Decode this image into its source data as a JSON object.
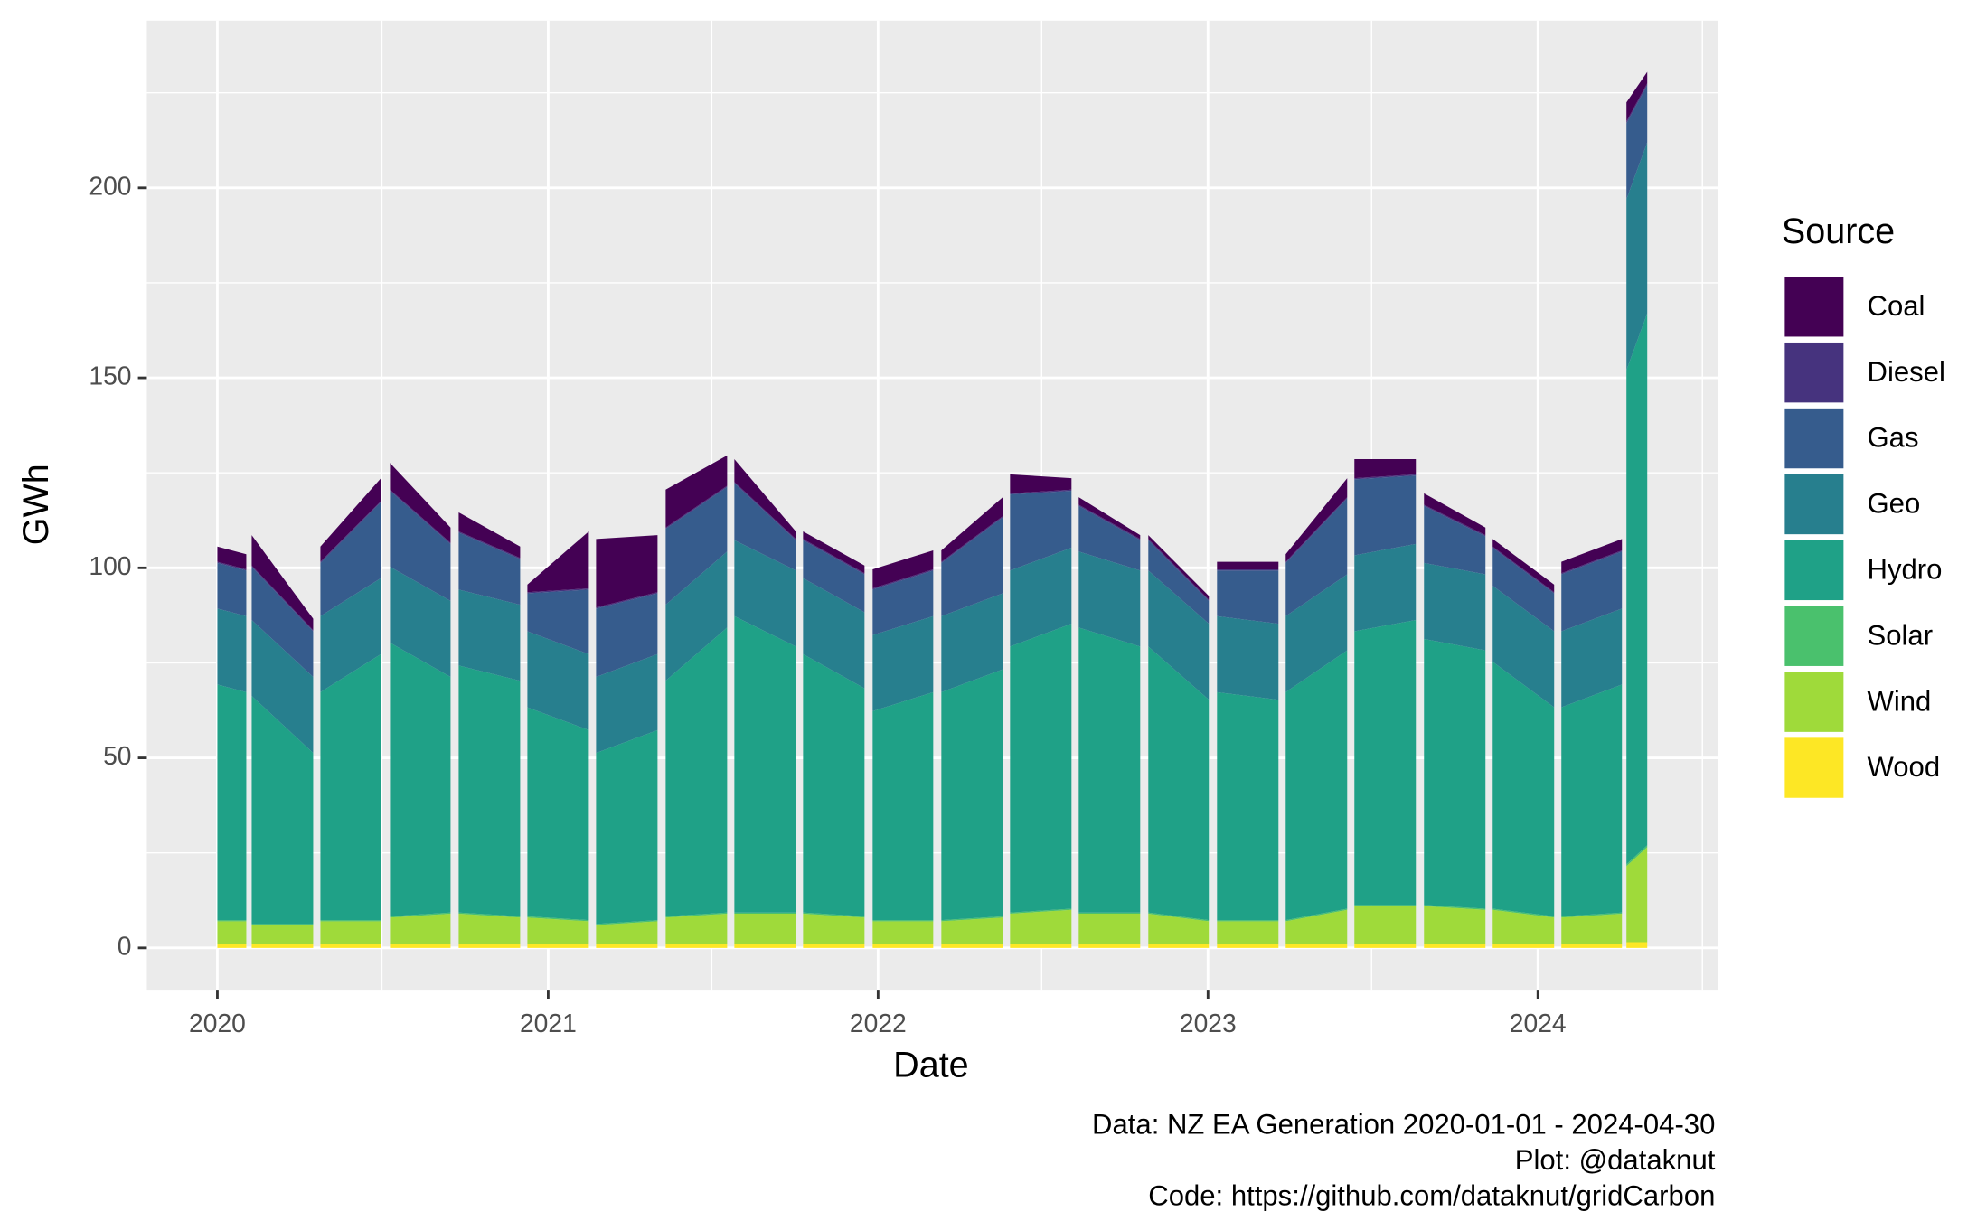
{
  "chart_data": {
    "type": "stacked_area",
    "x_label": "Date",
    "y_label": "GWh",
    "legend_title": "Source",
    "legend": "right",
    "grid": true,
    "caption": [
      "Data: NZ EA Generation 2020-01-01 - 2024-04-30",
      "Plot: @dataknut ",
      "Code: https://github.com/dataknut/gridCarbon"
    ],
    "xlim": [
      "2019-10-15",
      "2024-07-18"
    ],
    "xticks": [
      {
        "value": "2020-01-01",
        "label": "2020"
      },
      {
        "value": "2021-01-01",
        "label": "2021"
      },
      {
        "value": "2022-01-01",
        "label": "2022"
      },
      {
        "value": "2023-01-01",
        "label": "2023"
      },
      {
        "value": "2024-01-01",
        "label": "2024"
      }
    ],
    "xminor": [
      "2020-07-01",
      "2021-07-01",
      "2022-07-01",
      "2023-07-01",
      "2024-07-01"
    ],
    "ylim": [
      -11,
      244
    ],
    "yticks": [
      0,
      50,
      100,
      150,
      200
    ],
    "yminor": [
      25,
      75,
      125,
      175,
      225
    ],
    "x": [
      "2020-01-01",
      "2020-02-02",
      "2020-02-05",
      "2020-02-08",
      "2020-04-16",
      "2020-04-20",
      "2020-04-24",
      "2020-06-30",
      "2020-07-05",
      "2020-07-10",
      "2020-09-15",
      "2020-09-20",
      "2020-09-24",
      "2020-12-01",
      "2020-12-05",
      "2020-12-09",
      "2021-02-15",
      "2021-02-19",
      "2021-02-23",
      "2021-05-02",
      "2021-05-06",
      "2021-05-11",
      "2021-07-18",
      "2021-07-22",
      "2021-07-26",
      "2021-10-02",
      "2021-10-06",
      "2021-10-10",
      "2021-12-17",
      "2021-12-21",
      "2021-12-26",
      "2022-03-03",
      "2022-03-07",
      "2022-03-12",
      "2022-05-19",
      "2022-05-23",
      "2022-05-27",
      "2022-08-03",
      "2022-08-07",
      "2022-08-11",
      "2022-10-18",
      "2022-10-22",
      "2022-10-27",
      "2023-01-02",
      "2023-01-06",
      "2023-01-11",
      "2023-03-20",
      "2023-03-24",
      "2023-03-28",
      "2023-06-04",
      "2023-06-08",
      "2023-06-12",
      "2023-08-19",
      "2023-08-23",
      "2023-08-28",
      "2023-11-04",
      "2023-11-08",
      "2023-11-12",
      "2024-01-19",
      "2024-01-23",
      "2024-01-27",
      "2024-04-03",
      "2024-04-05",
      "2024-04-08",
      "2024-05-01"
    ],
    "series": [
      {
        "name": "Coal",
        "color": "#440154",
        "values": [
          4,
          4,
          null,
          8,
          3,
          null,
          4,
          6,
          null,
          7,
          4,
          null,
          5,
          3,
          null,
          2,
          15,
          null,
          18,
          15,
          null,
          10,
          8,
          null,
          6,
          2,
          null,
          2,
          2,
          null,
          5,
          5,
          null,
          3,
          5,
          null,
          5,
          3,
          null,
          2,
          1,
          null,
          1,
          1,
          null,
          2,
          2,
          null,
          2,
          5,
          null,
          5,
          4,
          null,
          3,
          2,
          null,
          2,
          2,
          null,
          3,
          3,
          null,
          5,
          3
        ]
      },
      {
        "name": "Diesel",
        "color": "#46337E",
        "values": [
          0.3,
          0.3,
          null,
          0.3,
          0.3,
          null,
          0.3,
          0.3,
          null,
          0.3,
          0.3,
          null,
          0.3,
          0.3,
          null,
          0.3,
          0.3,
          null,
          0.3,
          0.3,
          null,
          0.3,
          0.3,
          null,
          0.3,
          0.3,
          null,
          0.3,
          0.3,
          null,
          0.3,
          0.3,
          null,
          0.3,
          0.3,
          null,
          0.3,
          0.3,
          null,
          0.3,
          0.3,
          null,
          0.3,
          0.3,
          null,
          0.3,
          0.3,
          null,
          0.3,
          0.3,
          null,
          0.3,
          0.3,
          null,
          0.3,
          0.3,
          null,
          0.3,
          0.3,
          null,
          0.3,
          0.3,
          null,
          0.5,
          0.5
        ]
      },
      {
        "name": "Gas",
        "color": "#365C8D",
        "values": [
          12,
          12,
          null,
          14,
          12,
          null,
          14,
          20,
          null,
          20,
          15,
          null,
          15,
          12,
          null,
          10,
          17,
          null,
          18,
          16,
          null,
          20,
          17,
          null,
          15,
          8,
          null,
          10,
          10,
          null,
          12,
          12,
          null,
          14,
          20,
          null,
          20,
          15,
          null,
          12,
          8,
          null,
          8,
          6,
          null,
          12,
          14,
          null,
          14,
          20,
          null,
          20,
          18,
          null,
          15,
          10,
          null,
          10,
          10,
          null,
          15,
          15,
          null,
          20,
          15
        ]
      },
      {
        "name": "Geo",
        "color": "#277F8E",
        "values": [
          20,
          20,
          null,
          20,
          20,
          null,
          20,
          20,
          null,
          20,
          20,
          null,
          20,
          20,
          null,
          20,
          20,
          null,
          20,
          20,
          null,
          20,
          20,
          null,
          20,
          20,
          null,
          20,
          20,
          null,
          20,
          20,
          null,
          20,
          20,
          null,
          20,
          20,
          null,
          20,
          20,
          null,
          20,
          20,
          null,
          20,
          20,
          null,
          20,
          20,
          null,
          20,
          20,
          null,
          20,
          20,
          null,
          20,
          20,
          null,
          20,
          20,
          null,
          45,
          45
        ]
      },
      {
        "name": "Hydro",
        "color": "#1FA187",
        "values": [
          62,
          60,
          null,
          60,
          45,
          null,
          60,
          70,
          null,
          72,
          62,
          null,
          65,
          62,
          null,
          55,
          50,
          null,
          45,
          50,
          null,
          62,
          75,
          null,
          78,
          70,
          null,
          68,
          60,
          null,
          55,
          60,
          null,
          60,
          65,
          null,
          70,
          75,
          null,
          75,
          70,
          null,
          70,
          58,
          null,
          60,
          58,
          null,
          60,
          68,
          null,
          72,
          75,
          null,
          70,
          68,
          null,
          65,
          55,
          null,
          55,
          60,
          null,
          130,
          140
        ]
      },
      {
        "name": "Solar",
        "color": "#4AC16D",
        "values": [
          0.3,
          0.3,
          null,
          0.3,
          0.3,
          null,
          0.3,
          0.3,
          null,
          0.3,
          0.3,
          null,
          0.3,
          0.3,
          null,
          0.3,
          0.3,
          null,
          0.3,
          0.3,
          null,
          0.3,
          0.3,
          null,
          0.3,
          0.3,
          null,
          0.3,
          0.3,
          null,
          0.3,
          0.3,
          null,
          0.3,
          0.3,
          null,
          0.3,
          0.3,
          null,
          0.3,
          0.3,
          null,
          0.3,
          0.3,
          null,
          0.3,
          0.3,
          null,
          0.3,
          0.3,
          null,
          0.3,
          0.3,
          null,
          0.3,
          0.3,
          null,
          0.3,
          0.3,
          null,
          0.3,
          0.3,
          null,
          0.5,
          0.5
        ]
      },
      {
        "name": "Wind",
        "color": "#9FDA3A",
        "values": [
          6,
          6,
          null,
          5,
          5,
          null,
          6,
          6,
          null,
          7,
          8,
          null,
          8,
          7,
          null,
          7,
          6,
          null,
          5,
          6,
          null,
          7,
          8,
          null,
          8,
          8,
          null,
          8,
          7,
          null,
          6,
          6,
          null,
          6,
          7,
          null,
          8,
          9,
          null,
          8,
          8,
          null,
          8,
          6,
          null,
          6,
          6,
          null,
          6,
          9,
          null,
          10,
          10,
          null,
          10,
          9,
          null,
          9,
          7,
          null,
          7,
          8,
          null,
          20,
          25
        ]
      },
      {
        "name": "Wood",
        "color": "#FDE725",
        "values": [
          1,
          1,
          null,
          1,
          1,
          null,
          1,
          1,
          null,
          1,
          1,
          null,
          1,
          1,
          null,
          1,
          1,
          null,
          1,
          1,
          null,
          1,
          1,
          null,
          1,
          1,
          null,
          1,
          1,
          null,
          1,
          1,
          null,
          1,
          1,
          null,
          1,
          1,
          null,
          1,
          1,
          null,
          1,
          1,
          null,
          1,
          1,
          null,
          1,
          1,
          null,
          1,
          1,
          null,
          1,
          1,
          null,
          1,
          1,
          null,
          1,
          1,
          null,
          1.5,
          1.5
        ]
      }
    ]
  }
}
